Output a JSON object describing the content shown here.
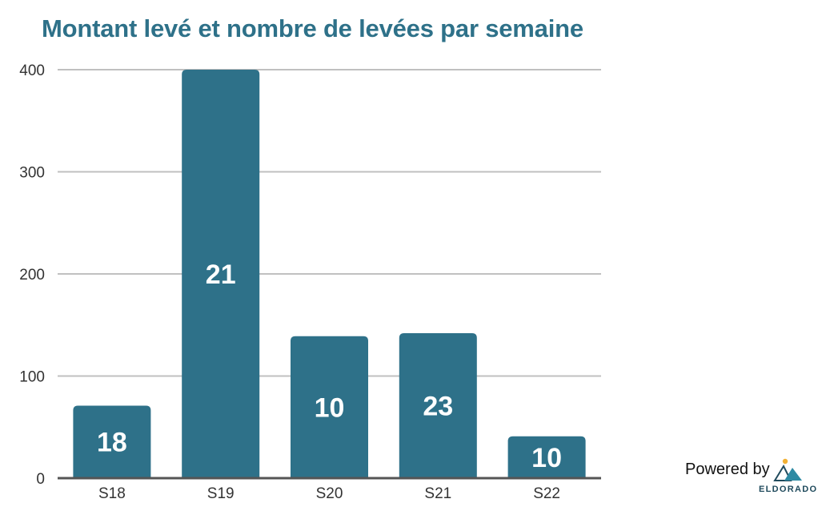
{
  "chart_data": {
    "type": "bar",
    "title": "Montant levé et nombre de levées par semaine",
    "categories": [
      "S18",
      "S19",
      "S20",
      "S21",
      "S22"
    ],
    "values": [
      71,
      400,
      139,
      142,
      41
    ],
    "data_labels": [
      "18",
      "21",
      "10",
      "23",
      "10"
    ],
    "ylim": [
      0,
      400
    ],
    "yticks": [
      "0",
      "100",
      "200",
      "300",
      "400"
    ],
    "ytick_values": [
      0,
      100,
      200,
      300,
      400
    ],
    "grid": true,
    "xlabel": "",
    "ylabel": "",
    "bar_color": "#2e7189"
  },
  "branding": {
    "powered_by": "Powered by",
    "brand_name": "ELDORADO",
    "logo_icon": "mountain-sun-icon"
  },
  "colors": {
    "title": "#2e7189",
    "bar": "#2e7189",
    "grid": "#c0c0c0",
    "axis": "#555555"
  }
}
